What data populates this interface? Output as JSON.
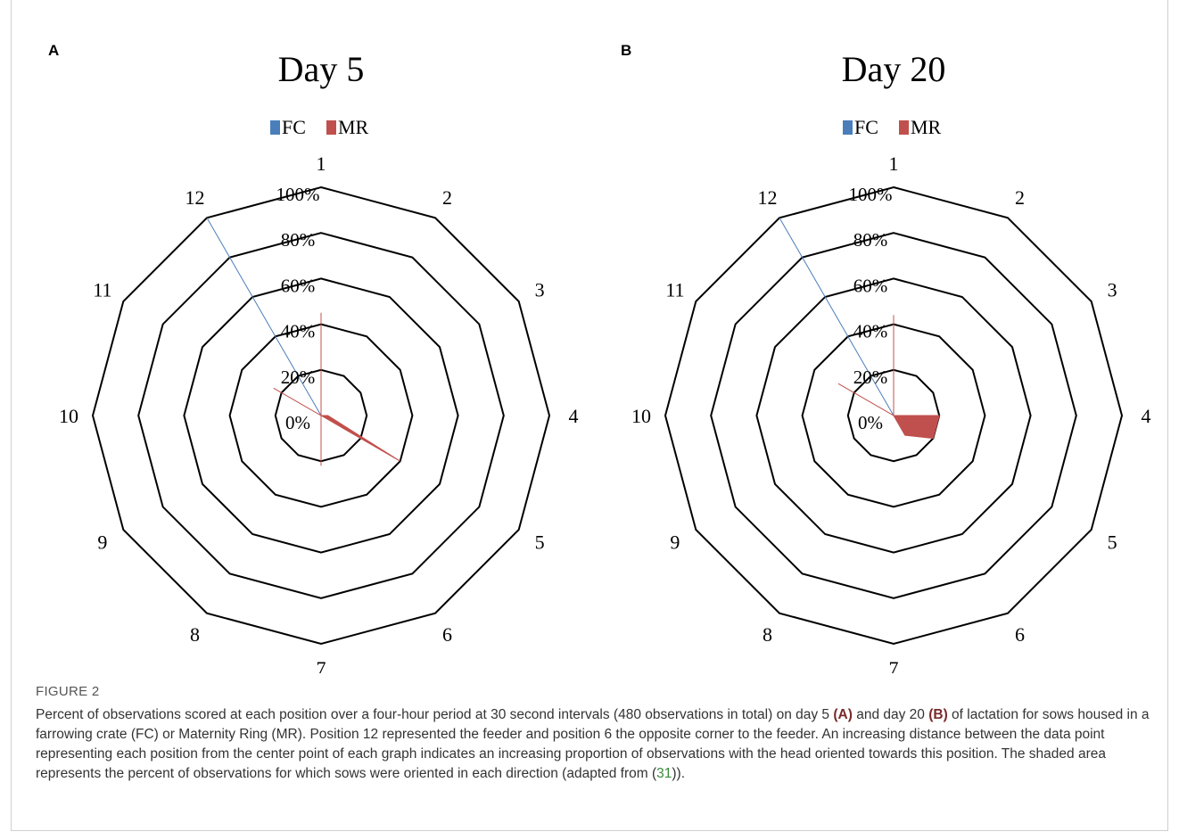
{
  "figure": {
    "caption_label": "FIGURE 2",
    "caption_parts": [
      {
        "t": "Percent of observations scored at each position over a four-hour period at 30 second intervals (480 observations in total) on day 5 ",
        "s": "n"
      },
      {
        "t": "(A)",
        "s": "b"
      },
      {
        "t": " and day 20 ",
        "s": "n"
      },
      {
        "t": "(B)",
        "s": "b"
      },
      {
        "t": " of lactation for sows housed in a farrowing crate (FC) or Maternity Ring (MR). Position 12 represented the feeder and position 6 the opposite corner to the feeder. An increasing distance between the data point representing each position from the center point of each graph indicates an increasing proportion of observations with the head oriented towards this position. The shaded area represents the percent of observations for which sows were oriented in each direction (adapted from (",
        "s": "n"
      },
      {
        "t": "31",
        "s": "r"
      },
      {
        "t": ")).",
        "s": "n"
      }
    ]
  },
  "colors": {
    "fc": "#4a7ebb",
    "mr": "#c0504d",
    "grid": "#000000"
  },
  "chart_data": [
    {
      "type": "radar",
      "panel_label": "A",
      "title": "Day 5",
      "categories": [
        "1",
        "2",
        "3",
        "4",
        "5",
        "6",
        "7",
        "8",
        "9",
        "10",
        "11",
        "12"
      ],
      "tick_labels": [
        "0%",
        "20%",
        "40%",
        "60%",
        "80%",
        "100%"
      ],
      "rlim": [
        0,
        100
      ],
      "legend_position": "top",
      "series": [
        {
          "name": "FC",
          "values": [
            0,
            0,
            0,
            0,
            0,
            0,
            0,
            0,
            0,
            0,
            0,
            100
          ]
        },
        {
          "name": "MR",
          "values": [
            45,
            0,
            0,
            3,
            40,
            0,
            22,
            0,
            0,
            0,
            24,
            0
          ]
        }
      ]
    },
    {
      "type": "radar",
      "panel_label": "B",
      "title": "Day 20",
      "categories": [
        "1",
        "2",
        "3",
        "4",
        "5",
        "6",
        "7",
        "8",
        "9",
        "10",
        "11",
        "12"
      ],
      "tick_labels": [
        "0%",
        "20%",
        "40%",
        "60%",
        "80%",
        "100%"
      ],
      "rlim": [
        0,
        100
      ],
      "legend_position": "top",
      "series": [
        {
          "name": "FC",
          "values": [
            0,
            0,
            0,
            0,
            0,
            0,
            0,
            0,
            0,
            0,
            0,
            100
          ]
        },
        {
          "name": "MR",
          "values": [
            44,
            0,
            0,
            20,
            20,
            10,
            0,
            0,
            0,
            0,
            28,
            0
          ]
        }
      ]
    }
  ]
}
